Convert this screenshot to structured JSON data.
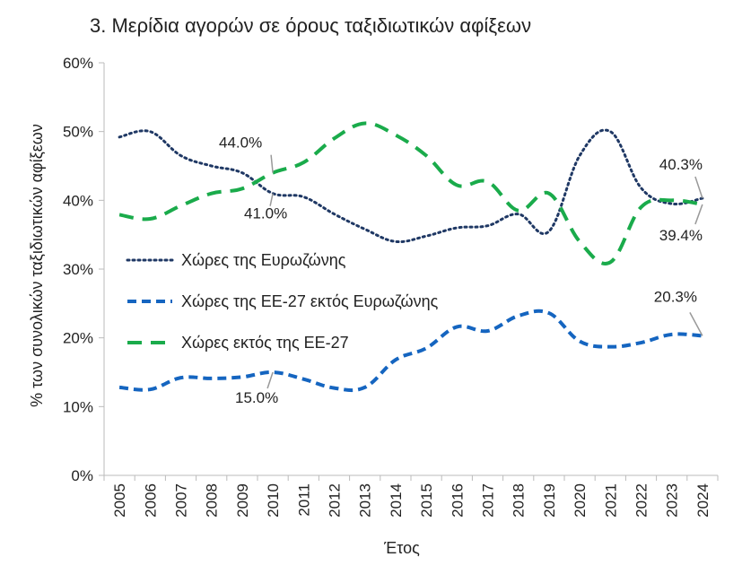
{
  "chart_data": {
    "type": "line",
    "title": "3. Μερίδια αγορών σε όρους ταξιδιωτικών αφίξεων",
    "xlabel": "Έτος",
    "ylabel": "% των συνολικών ταξιδιωτικών αφίξεων",
    "ylim": [
      0,
      60
    ],
    "yticks": [
      "0%",
      "10%",
      "20%",
      "30%",
      "40%",
      "50%",
      "60%"
    ],
    "categories": [
      "2005",
      "2006",
      "2007",
      "2008",
      "2009",
      "2010",
      "2011",
      "2012",
      "2013",
      "2014",
      "2015",
      "2016",
      "2017",
      "2018",
      "2019",
      "2020",
      "2021",
      "2022",
      "2023",
      "2024"
    ],
    "grid": false,
    "legend_position": "left-middle",
    "series": [
      {
        "name": "Χώρες της Ευρωζώνης",
        "color": "#1f3864",
        "style": "dotted",
        "values": [
          49.2,
          50.0,
          46.5,
          45.0,
          44.0,
          41.0,
          40.5,
          38.0,
          35.8,
          34.0,
          34.8,
          36.0,
          36.3,
          38.0,
          35.5,
          46.5,
          50.0,
          41.8,
          39.5,
          40.3
        ]
      },
      {
        "name": "Χώρες της ΕΕ-27 εκτός Ευρωζώνης",
        "color": "#1565c0",
        "style": "dashed",
        "values": [
          12.8,
          12.5,
          14.2,
          14.1,
          14.3,
          15.0,
          14.0,
          12.7,
          12.8,
          16.8,
          18.5,
          21.6,
          21.0,
          23.2,
          23.6,
          19.5,
          18.7,
          19.3,
          20.5,
          20.3
        ]
      },
      {
        "name": "Χώρες εκτός της ΕΕ-27",
        "color": "#1aab4b",
        "style": "longdash",
        "values": [
          37.9,
          37.3,
          39.2,
          41.0,
          41.7,
          44.0,
          45.5,
          49.0,
          51.2,
          49.5,
          46.5,
          42.2,
          42.7,
          38.5,
          41.0,
          34.0,
          31.0,
          39.0,
          40.0,
          39.4
        ]
      }
    ],
    "annotations": [
      {
        "text": "44.0%",
        "series": 2,
        "category": "2010"
      },
      {
        "text": "41.0%",
        "series": 0,
        "category": "2010"
      },
      {
        "text": "15.0%",
        "series": 1,
        "category": "2010"
      },
      {
        "text": "40.3%",
        "series": 0,
        "category": "2024"
      },
      {
        "text": "39.4%",
        "series": 2,
        "category": "2024"
      },
      {
        "text": "20.3%",
        "series": 1,
        "category": "2024"
      }
    ]
  }
}
